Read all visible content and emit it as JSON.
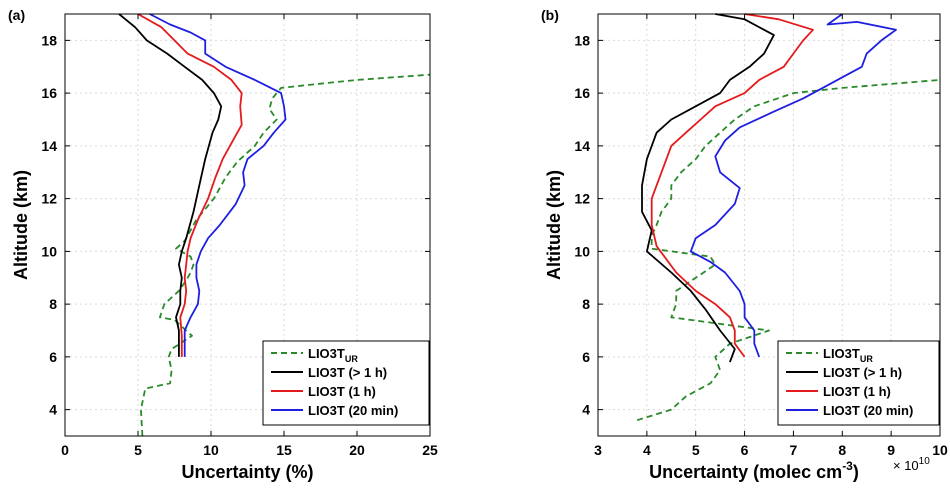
{
  "chart_data": [
    {
      "type": "line",
      "panel_label": "(a)",
      "xlabel": "Uncertainty (%)",
      "ylabel": "Altitude (km)",
      "xlim": [
        0,
        25
      ],
      "ylim": [
        3,
        19
      ],
      "xticks": [
        "0",
        "5",
        "10",
        "15",
        "20",
        "25"
      ],
      "yticks": [
        "4",
        "6",
        "8",
        "10",
        "12",
        "14",
        "16",
        "18"
      ],
      "xtick_values": [
        0,
        5,
        10,
        15,
        20,
        25
      ],
      "ytick_values": [
        4,
        6,
        8,
        10,
        12,
        14,
        16,
        18
      ],
      "grid": true,
      "legend_position": "bottom-right",
      "series": [
        {
          "name": "LIO3T",
          "name_subscript": "UR",
          "color": "#2a8a2a",
          "dash": "dashed",
          "points": [
            [
              5.3,
              3
            ],
            [
              5.2,
              4.0
            ],
            [
              5.5,
              4.8
            ],
            [
              7.2,
              5.0
            ],
            [
              7.3,
              5.5
            ],
            [
              7.1,
              6.0
            ],
            [
              7.3,
              6.3
            ],
            [
              8.7,
              6.8
            ],
            [
              7.5,
              7.4
            ],
            [
              6.5,
              7.5
            ],
            [
              6.8,
              8.0
            ],
            [
              7.8,
              8.5
            ],
            [
              8.3,
              8.9
            ],
            [
              8.6,
              9.2
            ],
            [
              8.8,
              9.5
            ],
            [
              8.6,
              9.8
            ],
            [
              7.6,
              10.1
            ],
            [
              8.2,
              10.4
            ],
            [
              8.6,
              10.8
            ],
            [
              9.0,
              11.2
            ],
            [
              10.2,
              12.0
            ],
            [
              11.0,
              12.8
            ],
            [
              11.8,
              13.4
            ],
            [
              13.0,
              14.0
            ],
            [
              13.6,
              14.5
            ],
            [
              14.5,
              15.0
            ],
            [
              14.0,
              15.4
            ],
            [
              14.2,
              15.8
            ],
            [
              14.8,
              16.2
            ],
            [
              16.5,
              16.3
            ],
            [
              20.0,
              16.5
            ],
            [
              25.0,
              16.7
            ]
          ]
        },
        {
          "name": "LIO3T (> 1 h)",
          "color": "#000000",
          "dash": "solid",
          "points": [
            [
              7.8,
              6.0
            ],
            [
              7.8,
              7.0
            ],
            [
              7.6,
              7.5
            ],
            [
              7.9,
              8.0
            ],
            [
              7.9,
              8.5
            ],
            [
              8.0,
              9.0
            ],
            [
              7.8,
              9.5
            ],
            [
              8.0,
              10.0
            ],
            [
              8.3,
              10.5
            ],
            [
              8.8,
              11.5
            ],
            [
              9.2,
              12.5
            ],
            [
              9.6,
              13.5
            ],
            [
              10.1,
              14.5
            ],
            [
              10.5,
              15.0
            ],
            [
              10.7,
              15.5
            ],
            [
              10.2,
              16.0
            ],
            [
              9.4,
              16.5
            ],
            [
              8.2,
              17.0
            ],
            [
              7.0,
              17.5
            ],
            [
              5.6,
              18.0
            ],
            [
              4.8,
              18.5
            ],
            [
              3.7,
              19.0
            ]
          ]
        },
        {
          "name": "LIO3T (1 h)",
          "color": "#e41a1c",
          "dash": "solid",
          "points": [
            [
              8.0,
              6.0
            ],
            [
              8.0,
              6.8
            ],
            [
              7.9,
              7.5
            ],
            [
              8.2,
              8.0
            ],
            [
              8.3,
              8.5
            ],
            [
              8.2,
              9.0
            ],
            [
              8.3,
              9.5
            ],
            [
              8.4,
              10.0
            ],
            [
              8.6,
              10.5
            ],
            [
              9.1,
              11.2
            ],
            [
              9.8,
              12.0
            ],
            [
              10.3,
              12.8
            ],
            [
              10.8,
              13.5
            ],
            [
              11.5,
              14.2
            ],
            [
              12.1,
              14.8
            ],
            [
              12.0,
              15.5
            ],
            [
              12.1,
              16.0
            ],
            [
              11.4,
              16.5
            ],
            [
              10.2,
              17.0
            ],
            [
              8.4,
              17.5
            ],
            [
              7.5,
              18.0
            ],
            [
              6.6,
              18.5
            ],
            [
              5.0,
              19.0
            ]
          ]
        },
        {
          "name": "LIO3T (20 min)",
          "color": "#1f1fe0",
          "dash": "solid",
          "points": [
            [
              8.2,
              6.0
            ],
            [
              8.2,
              7.0
            ],
            [
              8.6,
              7.5
            ],
            [
              9.1,
              8.0
            ],
            [
              9.2,
              8.5
            ],
            [
              9.0,
              9.0
            ],
            [
              9.0,
              9.5
            ],
            [
              9.3,
              10.0
            ],
            [
              9.8,
              10.5
            ],
            [
              10.6,
              11.0
            ],
            [
              11.7,
              11.8
            ],
            [
              12.3,
              12.5
            ],
            [
              12.2,
              13.0
            ],
            [
              12.5,
              13.5
            ],
            [
              13.6,
              14.0
            ],
            [
              14.3,
              14.5
            ],
            [
              15.1,
              15.0
            ],
            [
              15.0,
              15.5
            ],
            [
              14.8,
              16.0
            ],
            [
              13.0,
              16.5
            ],
            [
              11.0,
              17.0
            ],
            [
              9.6,
              17.5
            ],
            [
              9.6,
              18.0
            ],
            [
              8.6,
              18.3
            ],
            [
              7.2,
              18.6
            ],
            [
              5.8,
              19.0
            ]
          ]
        }
      ]
    },
    {
      "type": "line",
      "panel_label": "(b)",
      "xlabel_main": "Uncertainty (molec cm",
      "xlabel_sup": "-3",
      "xlabel_end": ")",
      "x_multiplier_base": "× 10",
      "x_multiplier_exp": "10",
      "ylabel": "Altitude (km)",
      "xlim": [
        3,
        10
      ],
      "ylim": [
        3,
        19
      ],
      "xticks": [
        "3",
        "4",
        "5",
        "6",
        "7",
        "8",
        "9",
        "10"
      ],
      "yticks": [
        "4",
        "6",
        "8",
        "10",
        "12",
        "14",
        "16",
        "18"
      ],
      "xtick_values": [
        3,
        4,
        5,
        6,
        7,
        8,
        9,
        10
      ],
      "ytick_values": [
        4,
        6,
        8,
        10,
        12,
        14,
        16,
        18
      ],
      "grid": true,
      "legend_position": "bottom-right",
      "series": [
        {
          "name": "LIO3T",
          "name_subscript": "UR",
          "color": "#2a8a2a",
          "dash": "dashed",
          "points": [
            [
              3.8,
              3.6
            ],
            [
              4.5,
              4.0
            ],
            [
              4.8,
              4.5
            ],
            [
              5.3,
              5.0
            ],
            [
              5.5,
              5.5
            ],
            [
              5.4,
              6.0
            ],
            [
              5.7,
              6.5
            ],
            [
              6.5,
              7.0
            ],
            [
              4.5,
              7.5
            ],
            [
              4.6,
              8.0
            ],
            [
              4.6,
              8.5
            ],
            [
              5.0,
              9.0
            ],
            [
              5.4,
              9.5
            ],
            [
              5.3,
              9.8
            ],
            [
              4.1,
              10.1
            ],
            [
              4.1,
              10.6
            ],
            [
              4.2,
              11.0
            ],
            [
              4.3,
              11.5
            ],
            [
              4.5,
              12.0
            ],
            [
              4.5,
              12.5
            ],
            [
              4.7,
              13.0
            ],
            [
              5.0,
              13.5
            ],
            [
              5.2,
              14.0
            ],
            [
              5.5,
              14.5
            ],
            [
              5.8,
              15.0
            ],
            [
              6.2,
              15.5
            ],
            [
              7.0,
              16.0
            ],
            [
              8.0,
              16.2
            ],
            [
              10.0,
              16.5
            ]
          ]
        },
        {
          "name": "LIO3T (> 1 h)",
          "color": "#000000",
          "dash": "solid",
          "points": [
            [
              5.7,
              5.8
            ],
            [
              5.8,
              6.3
            ],
            [
              5.5,
              7.0
            ],
            [
              5.2,
              7.8
            ],
            [
              4.9,
              8.5
            ],
            [
              4.5,
              9.2
            ],
            [
              4.0,
              10.0
            ],
            [
              4.1,
              10.8
            ],
            [
              3.9,
              11.5
            ],
            [
              3.9,
              12.5
            ],
            [
              4.0,
              13.5
            ],
            [
              4.2,
              14.5
            ],
            [
              4.5,
              15.0
            ],
            [
              5.0,
              15.5
            ],
            [
              5.5,
              16.0
            ],
            [
              5.7,
              16.5
            ],
            [
              6.1,
              17.0
            ],
            [
              6.4,
              17.5
            ],
            [
              6.6,
              18.2
            ],
            [
              6.0,
              18.8
            ],
            [
              5.4,
              19.0
            ]
          ]
        },
        {
          "name": "LIO3T (1 h)",
          "color": "#e41a1c",
          "dash": "solid",
          "points": [
            [
              6.0,
              6.0
            ],
            [
              5.8,
              6.5
            ],
            [
              5.8,
              7.0
            ],
            [
              5.7,
              7.5
            ],
            [
              5.4,
              8.0
            ],
            [
              5.0,
              8.5
            ],
            [
              4.6,
              9.2
            ],
            [
              4.2,
              10.2
            ],
            [
              4.1,
              11.0
            ],
            [
              4.1,
              12.0
            ],
            [
              4.3,
              13.0
            ],
            [
              4.5,
              14.0
            ],
            [
              4.8,
              14.5
            ],
            [
              5.1,
              15.0
            ],
            [
              5.4,
              15.5
            ],
            [
              6.0,
              16.0
            ],
            [
              6.3,
              16.5
            ],
            [
              6.8,
              17.0
            ],
            [
              7.0,
              17.5
            ],
            [
              7.2,
              18.0
            ],
            [
              7.4,
              18.4
            ],
            [
              6.7,
              18.8
            ],
            [
              6.0,
              19.0
            ]
          ]
        },
        {
          "name": "LIO3T (20 min)",
          "color": "#1f1fe0",
          "dash": "solid",
          "points": [
            [
              6.3,
              6.0
            ],
            [
              6.2,
              6.5
            ],
            [
              6.2,
              7.0
            ],
            [
              6.0,
              7.5
            ],
            [
              6.0,
              8.0
            ],
            [
              5.9,
              8.5
            ],
            [
              5.6,
              9.2
            ],
            [
              5.3,
              9.6
            ],
            [
              4.9,
              10.0
            ],
            [
              5.0,
              10.5
            ],
            [
              5.4,
              11.0
            ],
            [
              5.8,
              11.8
            ],
            [
              5.9,
              12.4
            ],
            [
              5.5,
              13.0
            ],
            [
              5.4,
              13.6
            ],
            [
              5.6,
              14.2
            ],
            [
              5.9,
              14.7
            ],
            [
              6.6,
              15.3
            ],
            [
              7.2,
              15.8
            ],
            [
              7.6,
              16.2
            ],
            [
              8.0,
              16.6
            ],
            [
              8.4,
              17.0
            ],
            [
              8.5,
              17.5
            ],
            [
              8.8,
              18.0
            ],
            [
              9.1,
              18.4
            ],
            [
              8.3,
              18.7
            ],
            [
              7.7,
              18.6
            ],
            [
              8.0,
              19.0
            ]
          ]
        }
      ]
    }
  ]
}
